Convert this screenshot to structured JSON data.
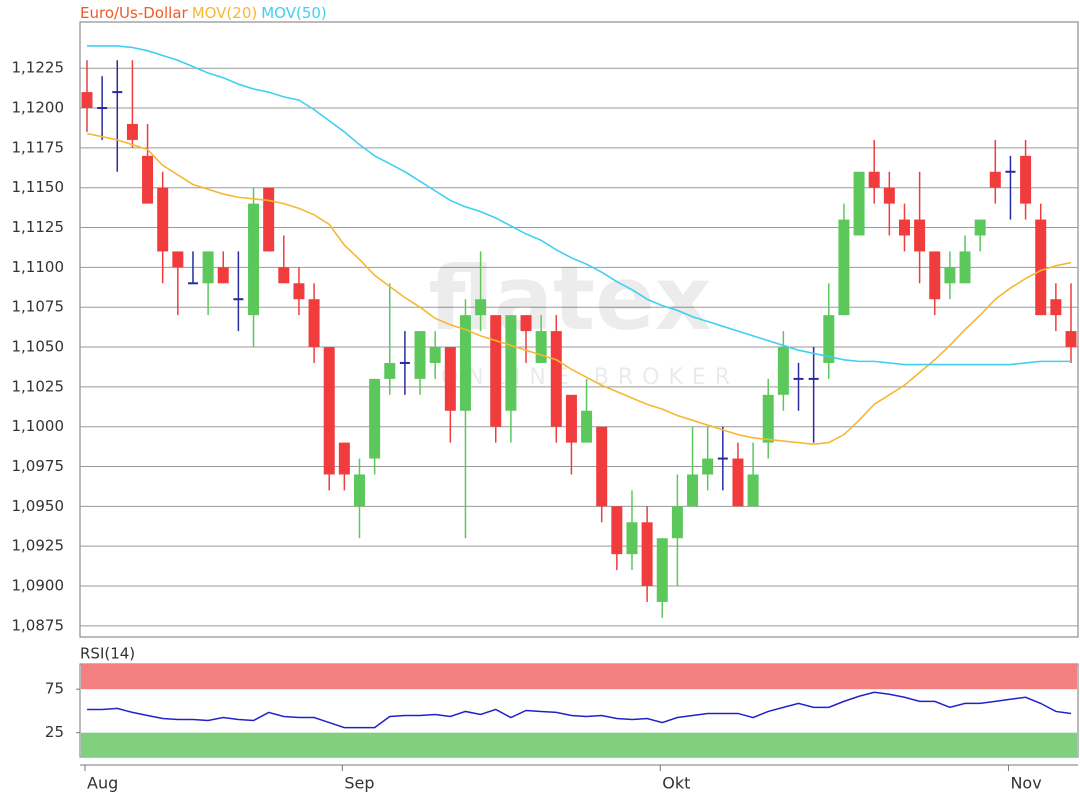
{
  "chart_data": [
    {
      "type": "candlestick",
      "title": "Euro/Us-Dollar",
      "title_color": "#f05a28",
      "watermark": {
        "logo": "flatex",
        "tagline": "ONLINE BROKER"
      },
      "categories": [
        "Aug",
        null,
        null,
        null,
        null,
        null,
        null,
        null,
        null,
        null,
        null,
        null,
        null,
        null,
        null,
        null,
        null,
        "Sep",
        null,
        null,
        null,
        null,
        null,
        null,
        null,
        null,
        null,
        null,
        null,
        null,
        null,
        null,
        null,
        null,
        null,
        null,
        null,
        null,
        "Okt",
        null,
        null,
        null,
        null,
        null,
        null,
        null,
        null,
        null,
        null,
        null,
        null,
        null,
        null,
        null,
        null,
        null,
        null,
        null,
        null,
        null,
        null,
        "Nov",
        null,
        null,
        null,
        null
      ],
      "open": [
        1.121,
        1.12,
        1.121,
        1.119,
        1.117,
        1.115,
        1.111,
        1.109,
        1.109,
        1.11,
        1.108,
        1.107,
        1.115,
        1.11,
        1.109,
        1.108,
        1.105,
        1.099,
        1.095,
        1.098,
        1.103,
        1.104,
        1.103,
        1.104,
        1.105,
        1.101,
        1.107,
        1.107,
        1.101,
        1.107,
        1.104,
        1.106,
        1.102,
        1.099,
        1.1,
        1.095,
        1.092,
        1.094,
        1.089,
        1.093,
        1.095,
        1.097,
        1.098,
        1.098,
        1.095,
        1.099,
        1.102,
        1.103,
        1.103,
        1.104,
        1.107,
        1.112,
        1.116,
        1.115,
        1.113,
        1.113,
        1.111,
        1.109,
        1.109,
        1.112,
        1.116,
        1.116,
        1.117,
        1.113,
        1.108,
        1.106
      ],
      "high": [
        1.123,
        1.122,
        1.123,
        1.123,
        1.119,
        1.116,
        1.111,
        1.111,
        1.111,
        1.111,
        1.111,
        1.115,
        1.115,
        1.112,
        1.11,
        1.109,
        1.105,
        1.099,
        1.098,
        1.103,
        1.109,
        1.106,
        1.106,
        1.106,
        1.105,
        1.108,
        1.111,
        1.107,
        1.107,
        1.107,
        1.107,
        1.107,
        1.102,
        1.103,
        1.1,
        1.095,
        1.096,
        1.095,
        1.093,
        1.097,
        1.1,
        1.1,
        1.1,
        1.099,
        1.099,
        1.103,
        1.106,
        1.104,
        1.105,
        1.109,
        1.114,
        1.116,
        1.118,
        1.116,
        1.114,
        1.116,
        1.111,
        1.111,
        1.112,
        1.113,
        1.118,
        1.117,
        1.118,
        1.114,
        1.109,
        1.109
      ],
      "low": [
        1.1185,
        1.118,
        1.116,
        1.1175,
        1.114,
        1.109,
        1.107,
        1.109,
        1.107,
        1.109,
        1.106,
        1.105,
        1.111,
        1.109,
        1.107,
        1.104,
        1.096,
        1.096,
        1.093,
        1.097,
        1.102,
        1.102,
        1.102,
        1.103,
        1.099,
        1.093,
        1.106,
        1.099,
        1.099,
        1.104,
        1.104,
        1.099,
        1.097,
        1.099,
        1.094,
        1.091,
        1.091,
        1.089,
        1.088,
        1.09,
        1.095,
        1.096,
        1.096,
        1.095,
        1.095,
        1.098,
        1.101,
        1.101,
        1.099,
        1.103,
        1.107,
        1.112,
        1.114,
        1.112,
        1.111,
        1.109,
        1.107,
        1.108,
        1.109,
        1.111,
        1.114,
        1.113,
        1.113,
        1.107,
        1.106,
        1.104
      ],
      "close": [
        1.12,
        1.12,
        1.121,
        1.118,
        1.114,
        1.111,
        1.11,
        1.109,
        1.111,
        1.109,
        1.108,
        1.114,
        1.111,
        1.109,
        1.108,
        1.105,
        1.097,
        1.097,
        1.097,
        1.103,
        1.104,
        1.104,
        1.106,
        1.105,
        1.101,
        1.107,
        1.108,
        1.1,
        1.107,
        1.106,
        1.106,
        1.1,
        1.099,
        1.101,
        1.095,
        1.092,
        1.094,
        1.09,
        1.093,
        1.095,
        1.097,
        1.098,
        1.098,
        1.095,
        1.097,
        1.102,
        1.105,
        1.103,
        1.103,
        1.107,
        1.113,
        1.116,
        1.115,
        1.114,
        1.112,
        1.111,
        1.108,
        1.11,
        1.111,
        1.113,
        1.115,
        1.116,
        1.114,
        1.107,
        1.107,
        1.105
      ],
      "up_color": "#5cc85c",
      "down_color": "#f03c3c",
      "flat_color": "#2a2aa0",
      "series": [
        {
          "name": "MOV(20)",
          "color": "#f7b731",
          "values": [
            1.1184,
            1.1182,
            1.118,
            1.1177,
            1.1174,
            1.1164,
            1.1158,
            1.1152,
            1.1149,
            1.1146,
            1.1144,
            1.1143,
            1.1142,
            1.114,
            1.1137,
            1.1133,
            1.1127,
            1.1114,
            1.1105,
            1.1095,
            1.1088,
            1.1081,
            1.1075,
            1.1068,
            1.1064,
            1.1061,
            1.1057,
            1.1054,
            1.1051,
            1.1048,
            1.1045,
            1.1042,
            1.1036,
            1.1031,
            1.1026,
            1.1022,
            1.1018,
            1.1014,
            1.1011,
            1.1007,
            1.1004,
            1.1001,
            1.0998,
            1.0995,
            1.0993,
            1.0992,
            1.0991,
            1.099,
            1.0989,
            1.099,
            1.0995,
            1.1004,
            1.1014,
            1.102,
            1.1026,
            1.1034,
            1.1042,
            1.1051,
            1.1061,
            1.107,
            1.108,
            1.1087,
            1.1093,
            1.1098,
            1.1101,
            1.1103
          ]
        },
        {
          "name": "MOV(50)",
          "color": "#3fd0f0",
          "values": [
            1.1239,
            1.1239,
            1.1239,
            1.1238,
            1.1236,
            1.1233,
            1.123,
            1.1226,
            1.1222,
            1.1219,
            1.1215,
            1.1212,
            1.121,
            1.1207,
            1.1205,
            1.1199,
            1.1192,
            1.1185,
            1.1177,
            1.117,
            1.1165,
            1.116,
            1.1154,
            1.1148,
            1.1142,
            1.1138,
            1.1135,
            1.1131,
            1.1126,
            1.1121,
            1.1117,
            1.1111,
            1.1106,
            1.1102,
            1.1097,
            1.1091,
            1.1086,
            1.108,
            1.1076,
            1.1073,
            1.1069,
            1.1066,
            1.1063,
            1.106,
            1.1057,
            1.1054,
            1.1051,
            1.1048,
            1.1046,
            1.1044,
            1.1042,
            1.1041,
            1.1041,
            1.104,
            1.1039,
            1.1039,
            1.1039,
            1.1039,
            1.1039,
            1.1039,
            1.1039,
            1.1039,
            1.104,
            1.1041,
            1.1041,
            1.1041
          ]
        }
      ],
      "ylim": [
        1.0868,
        1.1254
      ],
      "yticks": [
        {
          "value": 1.0875,
          "label": "1,0875"
        },
        {
          "value": 1.09,
          "label": "1,0900"
        },
        {
          "value": 1.0925,
          "label": "1,0925"
        },
        {
          "value": 1.095,
          "label": "1,0950"
        },
        {
          "value": 1.0975,
          "label": "1,0975"
        },
        {
          "value": 1.1,
          "label": "1,1000"
        },
        {
          "value": 1.1025,
          "label": "1,1025"
        },
        {
          "value": 1.105,
          "label": "1,1050"
        },
        {
          "value": 1.1075,
          "label": "1,1075"
        },
        {
          "value": 1.11,
          "label": "1,1100"
        },
        {
          "value": 1.1125,
          "label": "1,1125"
        },
        {
          "value": 1.115,
          "label": "1,1150"
        },
        {
          "value": 1.1175,
          "label": "1,1175"
        },
        {
          "value": 1.12,
          "label": "1,1200"
        },
        {
          "value": 1.1225,
          "label": "1,1225"
        }
      ],
      "grid": true
    },
    {
      "type": "line",
      "series": [
        {
          "name": "RSI(14)",
          "color": "#2222cc",
          "values": [
            51.7,
            51.7,
            52.9,
            48.3,
            44.8,
            41.3,
            40.1,
            40.1,
            39.0,
            42.4,
            40.1,
            39.0,
            48.3,
            43.6,
            42.4,
            42.4,
            36.6,
            30.8,
            30.8,
            30.8,
            43.6,
            44.8,
            44.8,
            45.9,
            43.6,
            49.4,
            45.9,
            51.7,
            42.4,
            50.5,
            49.4,
            48.3,
            44.8,
            43.6,
            44.8,
            41.3,
            40.1,
            41.3,
            36.6,
            42.4,
            44.8,
            47.1,
            47.1,
            47.1,
            42.4,
            49.4,
            54.1,
            58.7,
            54.1,
            54.1,
            61.0,
            66.9,
            71.5,
            69.2,
            65.7,
            61.0,
            61.0,
            54.1,
            58.7,
            58.7,
            61.0,
            63.4,
            65.7,
            58.7,
            49.4,
            47.1
          ]
        }
      ],
      "ylim": [
        -3,
        104
      ],
      "yticks": [
        25,
        75
      ],
      "upper_band": 75,
      "upper_color": "#f28080",
      "lower_band": 25,
      "lower_color": "#80d080"
    }
  ]
}
